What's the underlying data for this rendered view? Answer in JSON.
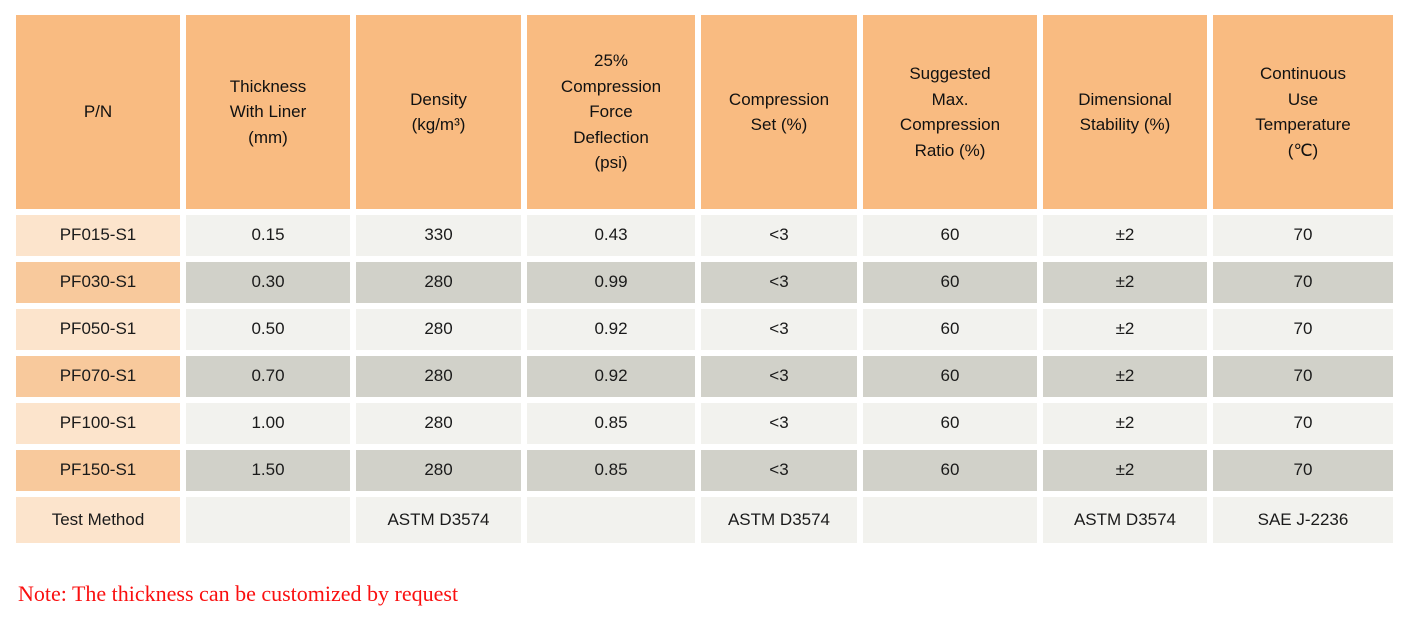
{
  "colors": {
    "header_bg": "#F9BB81",
    "pn_light_bg": "#FCE4CC",
    "pn_dark_bg": "#F8C99C",
    "row_light_bg": "#F2F2EE",
    "row_dark_bg": "#D1D1C9",
    "note_red": "#FA0F0F",
    "text": "#1A1A1A"
  },
  "table": {
    "columns": [
      "P/N",
      "Thickness\nWith Liner\n(mm)",
      "Density\n(kg/m³)",
      "25%\nCompression\nForce\nDeflection\n(psi)",
      "Compression\nSet (%)",
      "Suggested\nMax.\nCompression\nRatio (%)",
      "Dimensional\nStability (%)",
      "Continuous\nUse\nTemperature\n(℃)"
    ],
    "rows": [
      {
        "pn": "PF015-S1",
        "shade": "light",
        "values": [
          "0.15",
          "330",
          "0.43",
          "<3",
          "60",
          "±2",
          "70"
        ]
      },
      {
        "pn": "PF030-S1",
        "shade": "dark",
        "values": [
          "0.30",
          "280",
          "0.99",
          "<3",
          "60",
          "±2",
          "70"
        ]
      },
      {
        "pn": "PF050-S1",
        "shade": "light",
        "values": [
          "0.50",
          "280",
          "0.92",
          "<3",
          "60",
          "±2",
          "70"
        ]
      },
      {
        "pn": "PF070-S1",
        "shade": "dark",
        "values": [
          "0.70",
          "280",
          "0.92",
          "<3",
          "60",
          "±2",
          "70"
        ]
      },
      {
        "pn": "PF100-S1",
        "shade": "light",
        "values": [
          "1.00",
          "280",
          "0.85",
          "<3",
          "60",
          "±2",
          "70"
        ]
      },
      {
        "pn": "PF150-S1",
        "shade": "dark",
        "values": [
          "1.50",
          "280",
          "0.85",
          "<3",
          "60",
          "±2",
          "70"
        ]
      },
      {
        "pn": "Test Method",
        "shade": "light",
        "values": [
          "",
          "ASTM D3574",
          "",
          "ASTM D3574",
          "",
          "ASTM D3574",
          "SAE J-2236"
        ]
      }
    ]
  },
  "note": "Note: The thickness can be customized by request"
}
